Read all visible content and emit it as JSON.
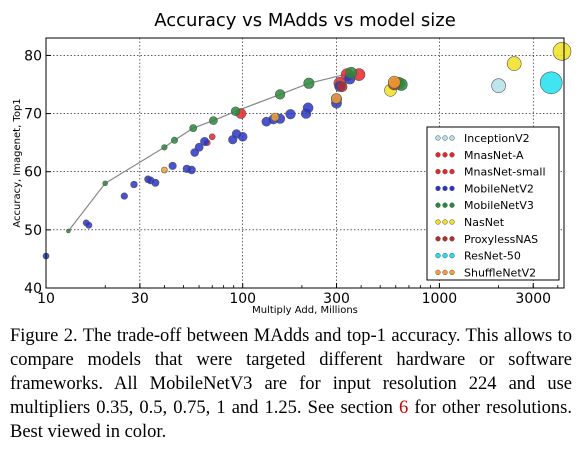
{
  "chart_data": {
    "type": "scatter",
    "title": "Accuracy vs MAdds vs model size",
    "xlabel": "Multiply Add, Millions",
    "ylabel": "Accuracy, Imagenet, Top1",
    "xscale": "log",
    "xlim": [
      10,
      4300
    ],
    "ylim": [
      40,
      83
    ],
    "xticks": [
      10,
      30,
      100,
      300,
      1000,
      3000
    ],
    "yticks": [
      40,
      50,
      60,
      70,
      80
    ],
    "grid": true,
    "legend_position": "right",
    "series": [
      {
        "name": "InceptionV2",
        "color": "#b3e0e8",
        "points": [
          [
            2000,
            74.8
          ]
        ]
      },
      {
        "name": "MnasNet-A",
        "color": "#e8262a",
        "points": [
          [
            66,
            65.0
          ],
          [
            98,
            70.0
          ],
          [
            312,
            75.2
          ],
          [
            340,
            76.7
          ],
          [
            390,
            76.7
          ]
        ]
      },
      {
        "name": "MnasNet-small",
        "color": "#e8262a",
        "points": [
          [
            70,
            66.0
          ]
        ]
      },
      {
        "name": "MobileNetV2",
        "color": "#2a35c8",
        "points": [
          [
            10,
            45.5
          ],
          [
            16,
            51.2
          ],
          [
            16.5,
            50.8
          ],
          [
            25,
            55.8
          ],
          [
            28,
            57.8
          ],
          [
            33,
            58.7
          ],
          [
            34,
            58.5
          ],
          [
            36,
            58.1
          ],
          [
            44,
            61.0
          ],
          [
            52,
            60.5
          ],
          [
            55,
            60.3
          ],
          [
            57,
            63.3
          ],
          [
            60,
            64.2
          ],
          [
            64,
            65.2
          ],
          [
            89,
            65.5
          ],
          [
            93,
            66.5
          ],
          [
            100,
            66.0
          ],
          [
            132,
            68.6
          ],
          [
            143,
            69.0
          ],
          [
            155,
            69.1
          ],
          [
            175,
            69.9
          ],
          [
            210,
            70.0
          ],
          [
            215,
            71.0
          ],
          [
            300,
            71.8
          ],
          [
            300,
            72.5
          ],
          [
            312,
            74.7
          ],
          [
            350,
            76.0
          ]
        ]
      },
      {
        "name": "MobileNetV3",
        "color": "#2a8a3a",
        "points": [
          [
            13,
            49.8
          ],
          [
            20,
            58.0
          ],
          [
            40,
            64.2
          ],
          [
            45,
            65.4
          ],
          [
            56,
            67.5
          ],
          [
            71,
            68.8
          ],
          [
            92,
            70.4
          ],
          [
            155,
            73.3
          ],
          [
            217,
            75.2
          ],
          [
            356,
            77.0
          ],
          [
            620,
            75.2
          ],
          [
            640,
            75.0
          ]
        ]
      },
      {
        "name": "NasNet",
        "color": "#f0e020",
        "points": [
          [
            564,
            74.0
          ],
          [
            2400,
            78.6
          ],
          [
            4200,
            80.7
          ]
        ]
      },
      {
        "name": "ProxylessNAS",
        "color": "#b03030",
        "points": [
          [
            320,
            74.6
          ],
          [
            590,
            75.1
          ]
        ]
      },
      {
        "name": "ResNet-50",
        "color": "#20e0f0",
        "points": [
          [
            3700,
            75.3
          ]
        ]
      },
      {
        "name": "ShuffleNetV2",
        "color": "#f5a030",
        "points": [
          [
            40,
            60.3
          ],
          [
            146,
            69.4
          ],
          [
            299,
            72.6
          ],
          [
            590,
            75.4
          ]
        ]
      }
    ],
    "size_note": "Marker area proportional to model size; MobileNetV3 connected by a grey trend line"
  },
  "caption": {
    "text_before_ref": "Figure 2. The trade-off between MAdds and top-1 accuracy. This allows to compare models that were targeted different hardware or software frameworks. All MobileNetV3 are for input resolution 224 and use multipliers 0.35, 0.5, 0.75, 1 and 1.25. See section ",
    "ref": "6",
    "text_after_ref": " for other resolutions. Best viewed in color."
  }
}
